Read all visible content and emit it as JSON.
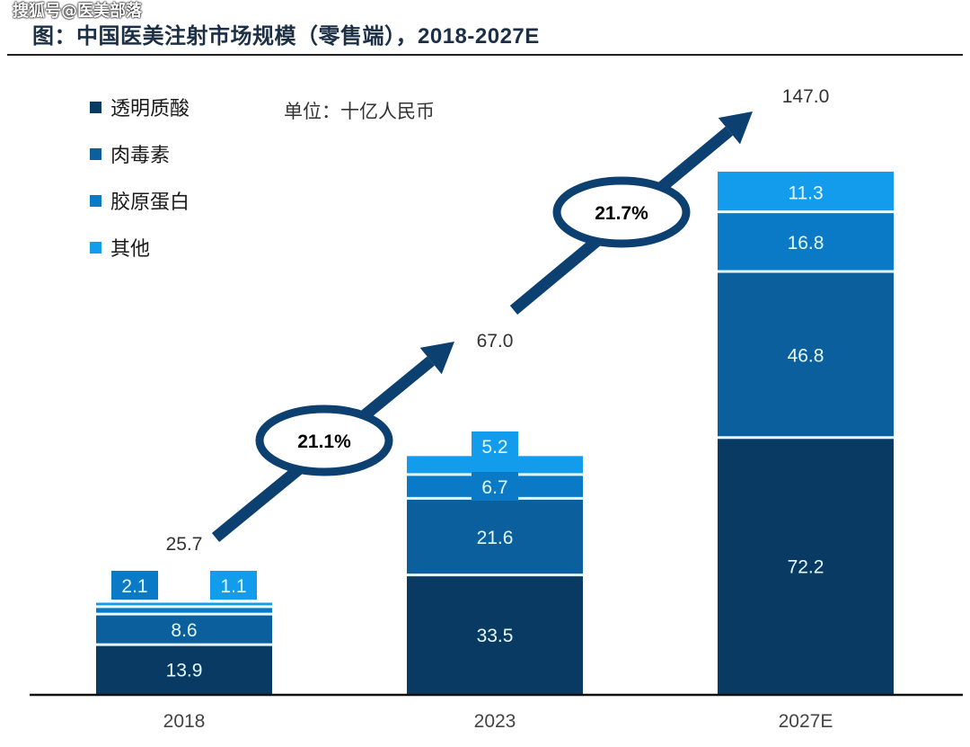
{
  "header": {
    "title_cn": "图：中国医美注射市场规模（零售端），",
    "title_range": "2018-2027E",
    "watermark": "搜狐号@医美部落"
  },
  "unit_label": "单位：十亿人民币",
  "chart_data": {
    "type": "bar",
    "stacked": true,
    "title": "图：中国医美注射市场规模（零售端），2018-2027E",
    "xlabel": "",
    "ylabel": "单位：十亿人民币",
    "categories": [
      "2018",
      "2023",
      "2027E"
    ],
    "series": [
      {
        "name": "透明质酸",
        "color": "#083a64",
        "values": [
          13.9,
          33.5,
          72.2
        ]
      },
      {
        "name": "肉毒素",
        "color": "#0a5f9c",
        "values": [
          8.6,
          21.6,
          46.8
        ]
      },
      {
        "name": "胶原蛋白",
        "color": "#0b7ac6",
        "values": [
          2.1,
          6.7,
          16.8
        ]
      },
      {
        "name": "其他",
        "color": "#129ceb",
        "values": [
          1.1,
          5.2,
          11.3
        ]
      }
    ],
    "totals": [
      25.7,
      67.0,
      147.0
    ],
    "totals_labels": [
      "25.7",
      "67.0",
      "147.0"
    ],
    "cagr": [
      {
        "from": "2018",
        "to": "2023",
        "label": "21.1%"
      },
      {
        "from": "2023",
        "to": "2027E",
        "label": "21.7%"
      }
    ],
    "ylim": [
      0,
      160
    ],
    "grid": false,
    "legend_position": "top-left"
  }
}
